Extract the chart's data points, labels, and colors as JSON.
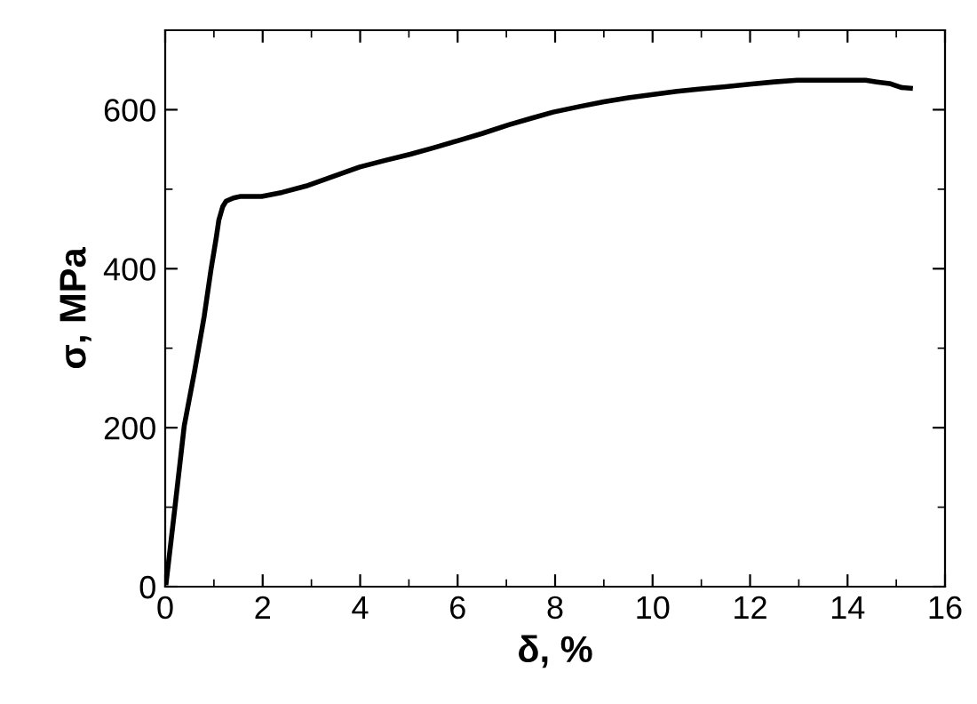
{
  "chart_data": {
    "type": "line",
    "xlabel": "δ, %",
    "ylabel": "σ, MPa",
    "xlim": [
      0,
      16
    ],
    "ylim": [
      0,
      700
    ],
    "xticks": [
      0,
      2,
      4,
      6,
      8,
      10,
      12,
      14,
      16
    ],
    "yticks": [
      0,
      200,
      400,
      600
    ],
    "grid": false,
    "legend": false,
    "marker": "none",
    "line_style": "solid",
    "series": [
      {
        "color": "#000000",
        "x": [
          0.02,
          0.2,
          0.39,
          0.6,
          0.8,
          0.94,
          1.05,
          1.1,
          1.18,
          1.25,
          1.4,
          1.55,
          1.98,
          2.4,
          2.89,
          3.4,
          3.99,
          4.5,
          5.03,
          5.5,
          6.0,
          6.5,
          7.05,
          7.5,
          7.96,
          8.5,
          9.0,
          9.5,
          9.98,
          10.5,
          10.95,
          11.5,
          11.99,
          12.5,
          12.97,
          13.5,
          14.0,
          14.37,
          14.6,
          14.86,
          15.1,
          15.29
        ],
        "values": [
          5,
          100,
          202,
          270,
          340,
          399,
          440,
          461,
          478,
          485,
          489,
          491,
          491,
          496,
          504,
          515,
          528,
          536,
          544,
          552,
          561,
          570,
          581,
          589,
          597,
          604,
          610,
          615,
          619,
          623,
          626,
          629,
          632,
          635,
          637,
          637,
          637,
          637,
          635,
          633,
          628,
          627
        ]
      }
    ]
  }
}
